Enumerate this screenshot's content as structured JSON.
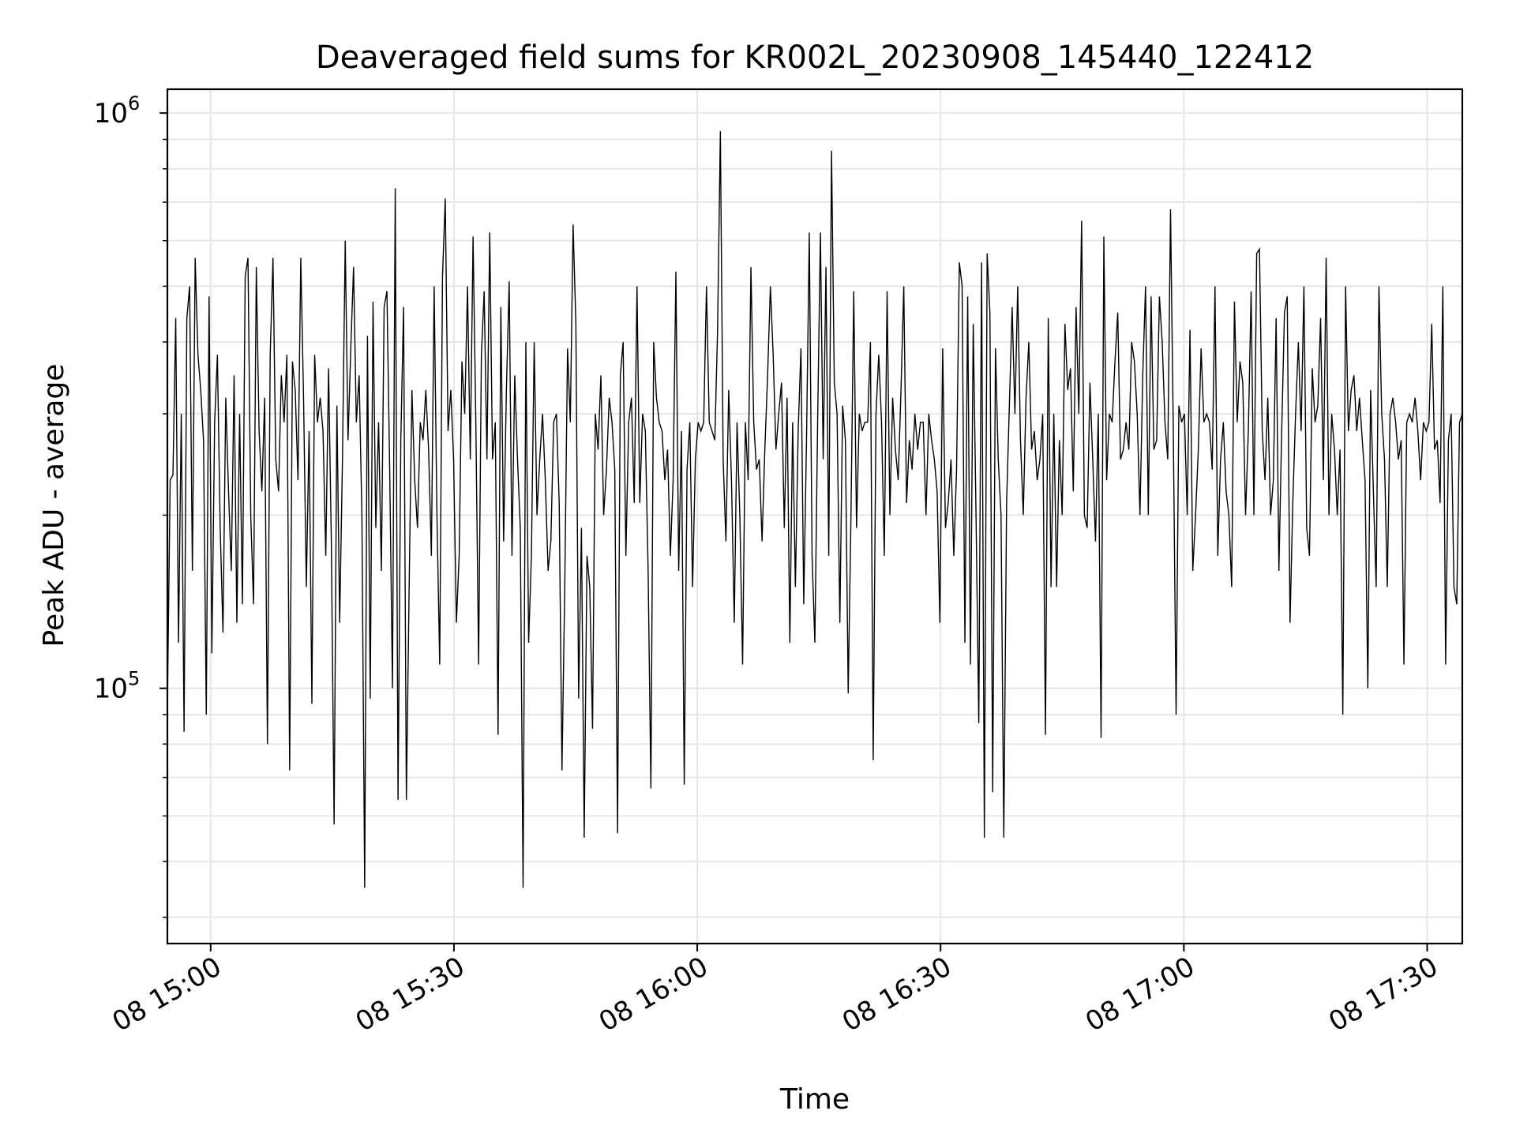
{
  "chart_data": {
    "type": "line",
    "title": "Deaveraged field sums for KR002L_20230908_145440_122412",
    "xlabel": "Time",
    "ylabel": "Peak ADU - average",
    "yscale": "log",
    "ylim": [
      36000,
      1100000
    ],
    "xlim": [
      "2023-09-08 14:54:40",
      "2023-09-08 17:34:20"
    ],
    "grid": true,
    "x_ticks": [
      {
        "label": "08 15:00",
        "time": "2023-09-08 15:00:00"
      },
      {
        "label": "08 15:30",
        "time": "2023-09-08 15:30:00"
      },
      {
        "label": "08 16:00",
        "time": "2023-09-08 16:00:00"
      },
      {
        "label": "08 16:30",
        "time": "2023-09-08 16:30:00"
      },
      {
        "label": "08 17:00",
        "time": "2023-09-08 17:00:00"
      },
      {
        "label": "08 17:30",
        "time": "2023-09-08 17:30:00"
      }
    ],
    "y_major_ticks": [
      {
        "base": "10",
        "exp": "5",
        "value": 100000
      },
      {
        "base": "10",
        "exp": "6",
        "value": 1000000
      }
    ],
    "series": [
      {
        "color": "#000000",
        "x_start": "2023-09-08 14:54:40",
        "x_end": "2023-09-08 17:34:20",
        "values": [
          93000,
          230000,
          235000,
          440000,
          120000,
          300000,
          84000,
          440000,
          500000,
          160000,
          560000,
          380000,
          330000,
          270000,
          90000,
          480000,
          115000,
          290000,
          380000,
          190000,
          125000,
          320000,
          220000,
          160000,
          350000,
          130000,
          300000,
          140000,
          520000,
          560000,
          200000,
          140000,
          540000,
          280000,
          220000,
          320000,
          80000,
          380000,
          560000,
          250000,
          220000,
          350000,
          290000,
          380000,
          72000,
          370000,
          330000,
          230000,
          560000,
          320000,
          150000,
          280000,
          94000,
          380000,
          290000,
          320000,
          280000,
          170000,
          360000,
          180000,
          58000,
          310000,
          130000,
          250000,
          600000,
          270000,
          390000,
          540000,
          290000,
          350000,
          200000,
          45000,
          410000,
          96000,
          470000,
          190000,
          290000,
          160000,
          460000,
          490000,
          240000,
          100000,
          740000,
          64000,
          270000,
          460000,
          64000,
          150000,
          330000,
          230000,
          190000,
          290000,
          270000,
          330000,
          260000,
          170000,
          500000,
          200000,
          110000,
          520000,
          710000,
          280000,
          330000,
          250000,
          130000,
          170000,
          370000,
          300000,
          500000,
          250000,
          610000,
          290000,
          110000,
          380000,
          490000,
          250000,
          620000,
          250000,
          290000,
          83000,
          460000,
          180000,
          330000,
          510000,
          170000,
          350000,
          250000,
          190000,
          45000,
          400000,
          120000,
          170000,
          400000,
          200000,
          250000,
          300000,
          230000,
          160000,
          180000,
          290000,
          300000,
          210000,
          72000,
          150000,
          390000,
          290000,
          640000,
          430000,
          96000,
          190000,
          55000,
          170000,
          150000,
          85000,
          300000,
          260000,
          350000,
          200000,
          240000,
          320000,
          290000,
          240000,
          56000,
          350000,
          400000,
          170000,
          290000,
          320000,
          210000,
          500000,
          210000,
          300000,
          280000,
          160000,
          67000,
          400000,
          320000,
          290000,
          280000,
          230000,
          260000,
          170000,
          230000,
          530000,
          160000,
          280000,
          68000,
          240000,
          290000,
          150000,
          250000,
          290000,
          280000,
          290000,
          500000,
          290000,
          280000,
          270000,
          420000,
          930000,
          250000,
          180000,
          330000,
          230000,
          130000,
          290000,
          200000,
          110000,
          290000,
          230000,
          540000,
          290000,
          240000,
          250000,
          180000,
          260000,
          350000,
          500000,
          380000,
          260000,
          300000,
          340000,
          190000,
          320000,
          120000,
          290000,
          150000,
          280000,
          390000,
          140000,
          270000,
          620000,
          170000,
          120000,
          290000,
          620000,
          250000,
          540000,
          170000,
          860000,
          340000,
          300000,
          130000,
          310000,
          270000,
          98000,
          200000,
          490000,
          190000,
          300000,
          280000,
          290000,
          290000,
          400000,
          75000,
          300000,
          380000,
          290000,
          170000,
          490000,
          200000,
          320000,
          260000,
          230000,
          330000,
          500000,
          210000,
          270000,
          240000,
          300000,
          260000,
          290000,
          290000,
          200000,
          300000,
          270000,
          250000,
          220000,
          130000,
          390000,
          190000,
          210000,
          250000,
          170000,
          240000,
          550000,
          500000,
          120000,
          480000,
          110000,
          430000,
          200000,
          87000,
          550000,
          55000,
          570000,
          450000,
          66000,
          390000,
          250000,
          200000,
          55000,
          210000,
          310000,
          460000,
          300000,
          500000,
          270000,
          200000,
          320000,
          400000,
          260000,
          280000,
          230000,
          250000,
          300000,
          83000,
          440000,
          150000,
          300000,
          150000,
          270000,
          200000,
          430000,
          330000,
          360000,
          220000,
          460000,
          300000,
          650000,
          200000,
          190000,
          340000,
          250000,
          180000,
          300000,
          82000,
          610000,
          230000,
          300000,
          290000,
          370000,
          450000,
          250000,
          260000,
          290000,
          260000,
          400000,
          370000,
          300000,
          200000,
          350000,
          500000,
          200000,
          480000,
          260000,
          270000,
          480000,
          400000,
          290000,
          250000,
          680000,
          280000,
          90000,
          310000,
          290000,
          300000,
          200000,
          420000,
          160000,
          200000,
          260000,
          390000,
          290000,
          300000,
          290000,
          240000,
          500000,
          170000,
          250000,
          290000,
          220000,
          200000,
          150000,
          470000,
          290000,
          370000,
          340000,
          200000,
          280000,
          490000,
          200000,
          570000,
          580000,
          280000,
          230000,
          320000,
          200000,
          230000,
          440000,
          160000,
          280000,
          450000,
          480000,
          130000,
          210000,
          300000,
          400000,
          280000,
          500000,
          190000,
          170000,
          360000,
          290000,
          310000,
          440000,
          230000,
          560000,
          200000,
          300000,
          260000,
          200000,
          260000,
          90000,
          500000,
          280000,
          330000,
          350000,
          280000,
          320000,
          270000,
          230000,
          100000,
          330000,
          220000,
          150000,
          500000,
          300000,
          250000,
          150000,
          300000,
          320000,
          290000,
          250000,
          270000,
          110000,
          290000,
          300000,
          290000,
          320000,
          280000,
          230000,
          290000,
          280000,
          290000,
          430000,
          260000,
          270000,
          210000,
          500000,
          110000,
          270000,
          300000,
          150000,
          140000,
          290000,
          300000
        ]
      }
    ]
  }
}
